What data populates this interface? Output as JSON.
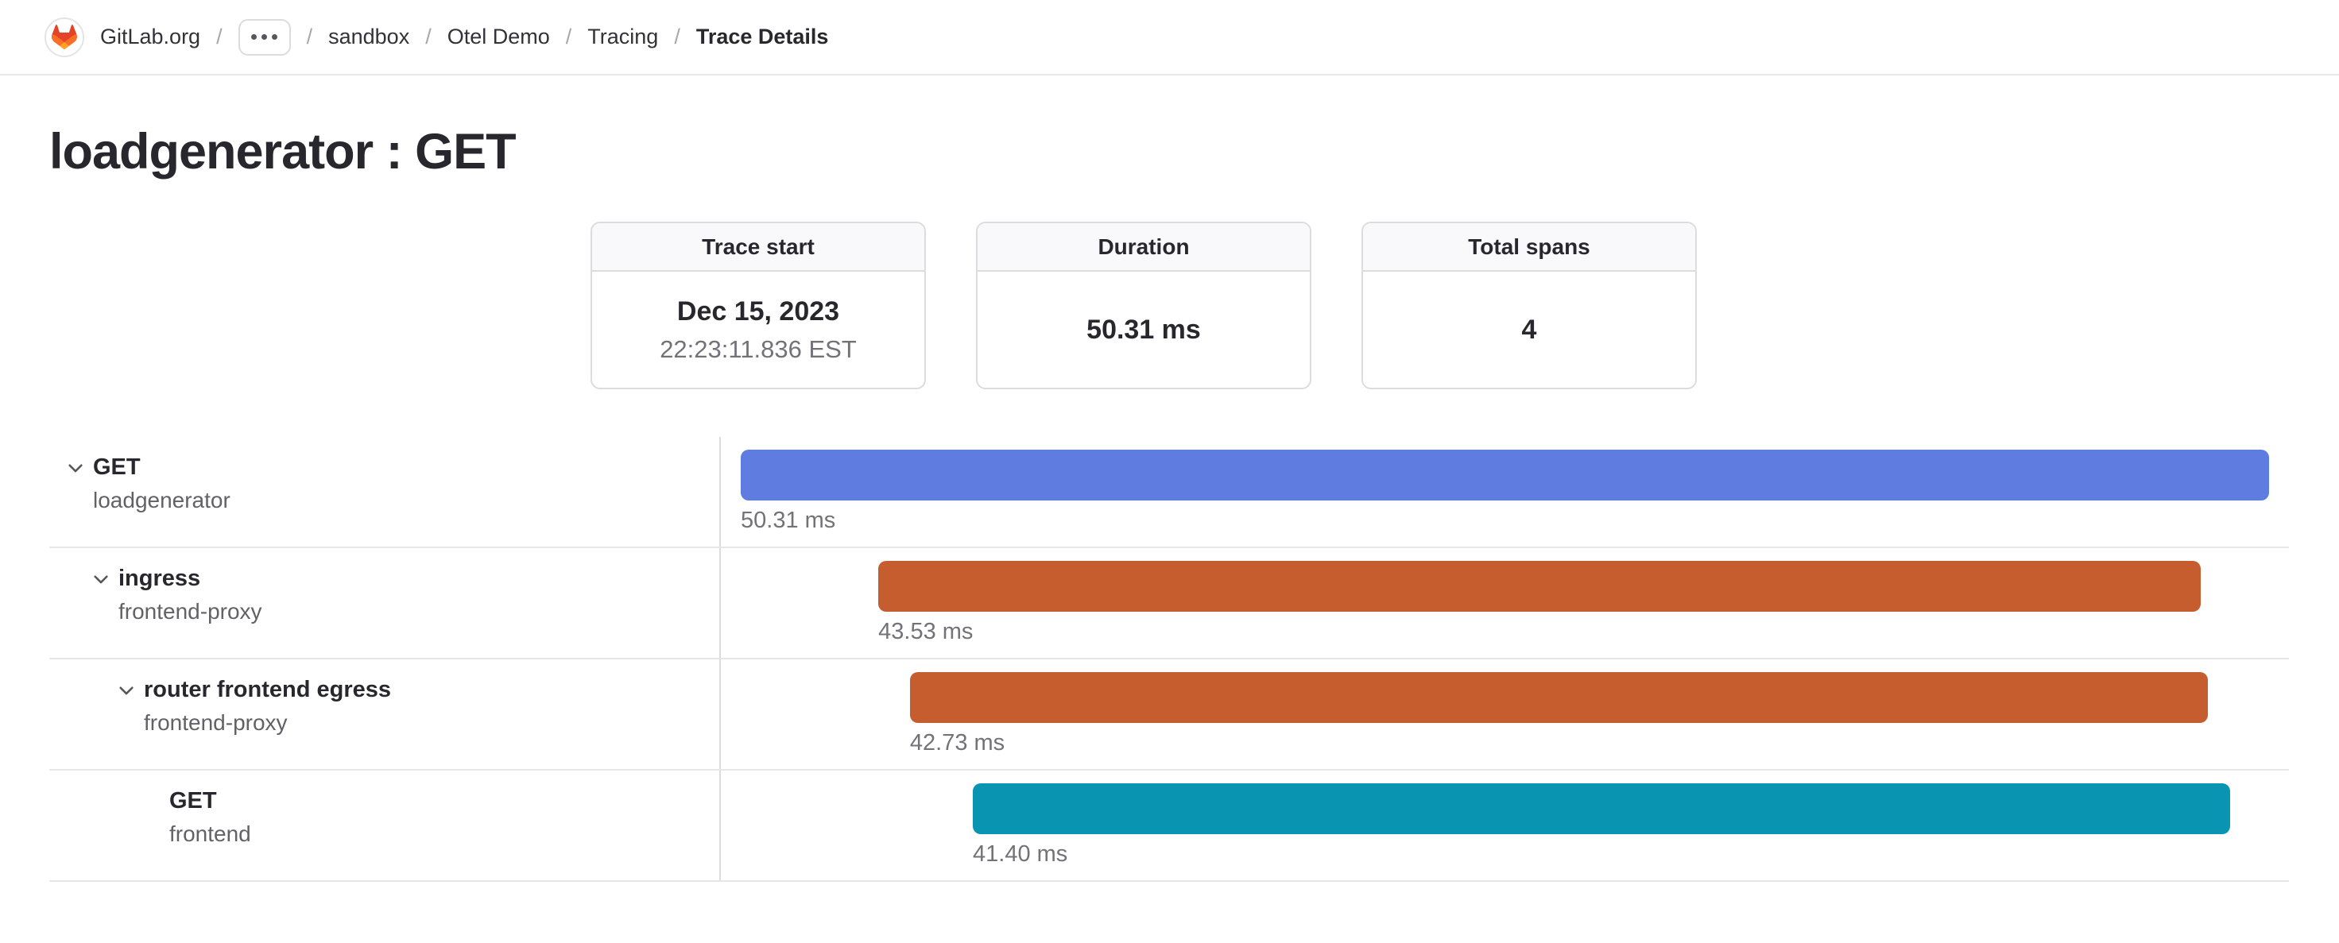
{
  "page": {
    "title": "loadgenerator : GET"
  },
  "breadcrumb": {
    "separator": "/",
    "items": [
      {
        "label": "GitLab.org"
      },
      {
        "label": "sandbox"
      },
      {
        "label": "Otel Demo"
      },
      {
        "label": "Tracing"
      },
      {
        "label": "Trace Details"
      }
    ]
  },
  "logo": {
    "colors": {
      "red": "#e24329",
      "orange": "#fc6d26",
      "amber": "#fca326"
    }
  },
  "summary_cards": [
    {
      "label": "Trace start",
      "value": "Dec 15, 2023",
      "sub_value": "22:23:11.836 EST"
    },
    {
      "label": "Duration",
      "value": "50.31 ms"
    },
    {
      "label": "Total spans",
      "value": "4"
    }
  ],
  "chart_data": {
    "type": "bar",
    "variant": "trace-waterfall",
    "title": "loadgenerator : GET",
    "unit": "ms",
    "total_duration_ms": 50.31,
    "xlim": [
      0,
      50.31
    ],
    "grid": false,
    "spans": [
      {
        "operation": "GET",
        "service": "loadgenerator",
        "depth": 0,
        "expandable": true,
        "start_ms": 0,
        "duration_ms": 50.31,
        "duration_label": "50.31 ms",
        "color": "#5f7ce0"
      },
      {
        "operation": "ingress",
        "service": "frontend-proxy",
        "depth": 1,
        "expandable": true,
        "start_ms": 4.53,
        "duration_ms": 43.53,
        "duration_label": "43.53 ms",
        "color": "#c65d2e"
      },
      {
        "operation": "router frontend egress",
        "service": "frontend-proxy",
        "depth": 2,
        "expandable": true,
        "start_ms": 5.57,
        "duration_ms": 42.73,
        "duration_label": "42.73 ms",
        "color": "#c65d2e"
      },
      {
        "operation": "GET",
        "service": "frontend",
        "depth": 3,
        "expandable": false,
        "start_ms": 7.64,
        "duration_ms": 41.4,
        "duration_label": "41.40 ms",
        "color": "#0995b2"
      }
    ]
  }
}
